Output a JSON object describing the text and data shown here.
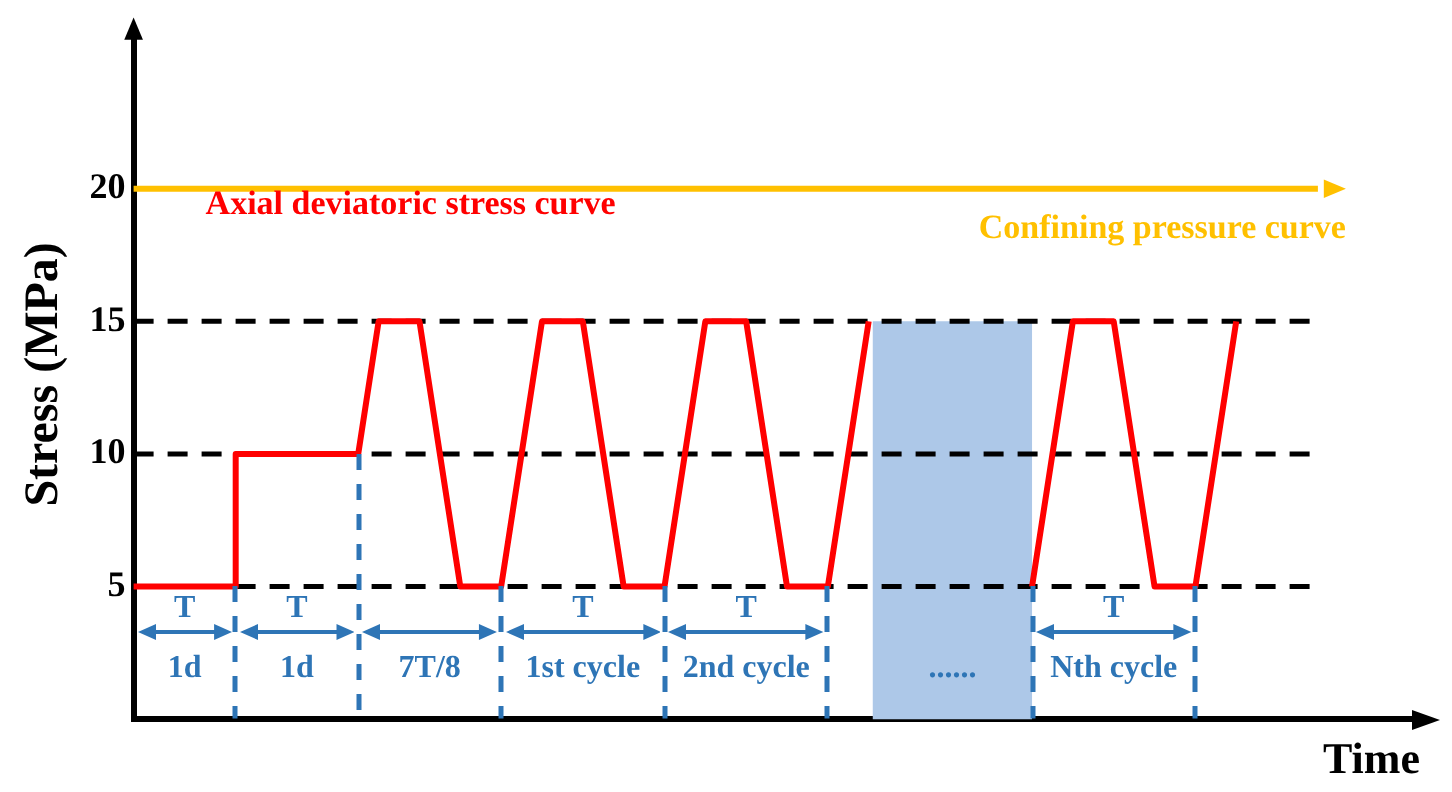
{
  "chart_data": {
    "type": "line",
    "ylabel": "Stress (MPa)",
    "xlabel": "Time",
    "categories": [
      null,
      null,
      null,
      null,
      null,
      null,
      null,
      null,
      null,
      null,
      null,
      null,
      null,
      null,
      null,
      null,
      null,
      null,
      null,
      null,
      null,
      null,
      null,
      null,
      null,
      null,
      null,
      null,
      null,
      null,
      null,
      null,
      null,
      null,
      null,
      null,
      null,
      null,
      null,
      null,
      null,
      null,
      null,
      null,
      null,
      null,
      null,
      null,
      null,
      null,
      null,
      null,
      null,
      null,
      null,
      null,
      null,
      null,
      null,
      null,
      null,
      null,
      null,
      null
    ],
    "ylim": [
      0,
      26
    ],
    "yticks": [
      5,
      10,
      15,
      20
    ],
    "tick_labels": "y",
    "grid": false,
    "legend": "top",
    "marker": "none",
    "series": [
      {
        "name": "Axial deviatoric stress curve",
        "type": "step",
        "color": "#ff0000",
        "values": [
          5,
          5,
          5,
          5,
          5,
          10,
          10,
          10,
          10,
          10,
          10,
          10,
          null,
          null,
          null,
          null,
          null,
          null,
          null,
          null,
          null,
          null,
          null,
          null,
          null,
          null,
          null,
          null,
          null,
          null,
          null,
          null,
          null,
          null,
          null,
          null,
          null,
          null,
          null,
          null,
          null,
          null,
          null,
          null,
          null,
          null,
          null,
          null,
          null,
          null,
          null,
          null,
          null,
          null,
          null,
          null,
          null,
          null,
          null,
          null,
          null,
          null,
          null,
          null
        ]
      },
      {
        "color": "#ff0000",
        "values": [
          null,
          null,
          null,
          null,
          null,
          null,
          null,
          null,
          null,
          null,
          null,
          10,
          15,
          15,
          15,
          10,
          5,
          5,
          5,
          10,
          15,
          15,
          15,
          10,
          5,
          5,
          5,
          10,
          15,
          15,
          15,
          10,
          5,
          5,
          5,
          10,
          15,
          null,
          null,
          null,
          null,
          null,
          null,
          null,
          null,
          null,
          null,
          null,
          null,
          null,
          null,
          null,
          null,
          null,
          null,
          null,
          null,
          null,
          null,
          null,
          null,
          null,
          null,
          null
        ]
      },
      {
        "color": "#ff0000",
        "values": [
          null,
          null,
          null,
          null,
          null,
          null,
          null,
          null,
          null,
          null,
          null,
          null,
          null,
          null,
          null,
          null,
          null,
          null,
          null,
          null,
          null,
          null,
          null,
          null,
          null,
          null,
          null,
          null,
          null,
          null,
          null,
          null,
          null,
          null,
          null,
          null,
          null,
          null,
          null,
          null,
          null,
          null,
          null,
          null,
          5,
          10,
          15,
          15,
          15,
          10,
          5,
          5,
          5,
          10,
          15,
          null,
          null,
          null,
          null,
          null,
          null,
          null,
          null,
          null
        ]
      },
      {
        "name": "Confining pressure curve",
        "color": "#ffc000",
        "values": [
          20,
          20,
          20,
          20,
          20,
          20,
          20,
          20,
          20,
          20,
          20,
          20,
          20,
          20,
          20,
          20,
          20,
          20,
          20,
          20,
          20,
          20,
          20,
          20,
          20,
          20,
          20,
          20,
          20,
          20,
          20,
          20,
          20,
          20,
          20,
          20,
          20,
          20,
          20,
          20,
          20,
          20,
          20,
          20,
          20,
          20,
          20,
          20,
          20,
          20,
          20,
          20,
          20,
          20,
          20,
          20,
          20,
          20,
          20,
          null,
          null,
          null,
          null,
          null
        ]
      }
    ],
    "ref_lines": [
      {
        "axis": "y",
        "value": 5,
        "color": "#000000",
        "line_style": "dashed"
      },
      {
        "axis": "y",
        "value": 10,
        "color": "#000000",
        "line_style": "dashed"
      },
      {
        "axis": "y",
        "value": 15,
        "color": "#000000",
        "line_style": "dashed"
      }
    ],
    "annotations": [
      "T",
      "1d",
      "T",
      "1d",
      "7T/8",
      "T",
      "1st cycle",
      "T",
      "2nd cycle",
      "......",
      "T",
      "Nth cycle"
    ]
  }
}
